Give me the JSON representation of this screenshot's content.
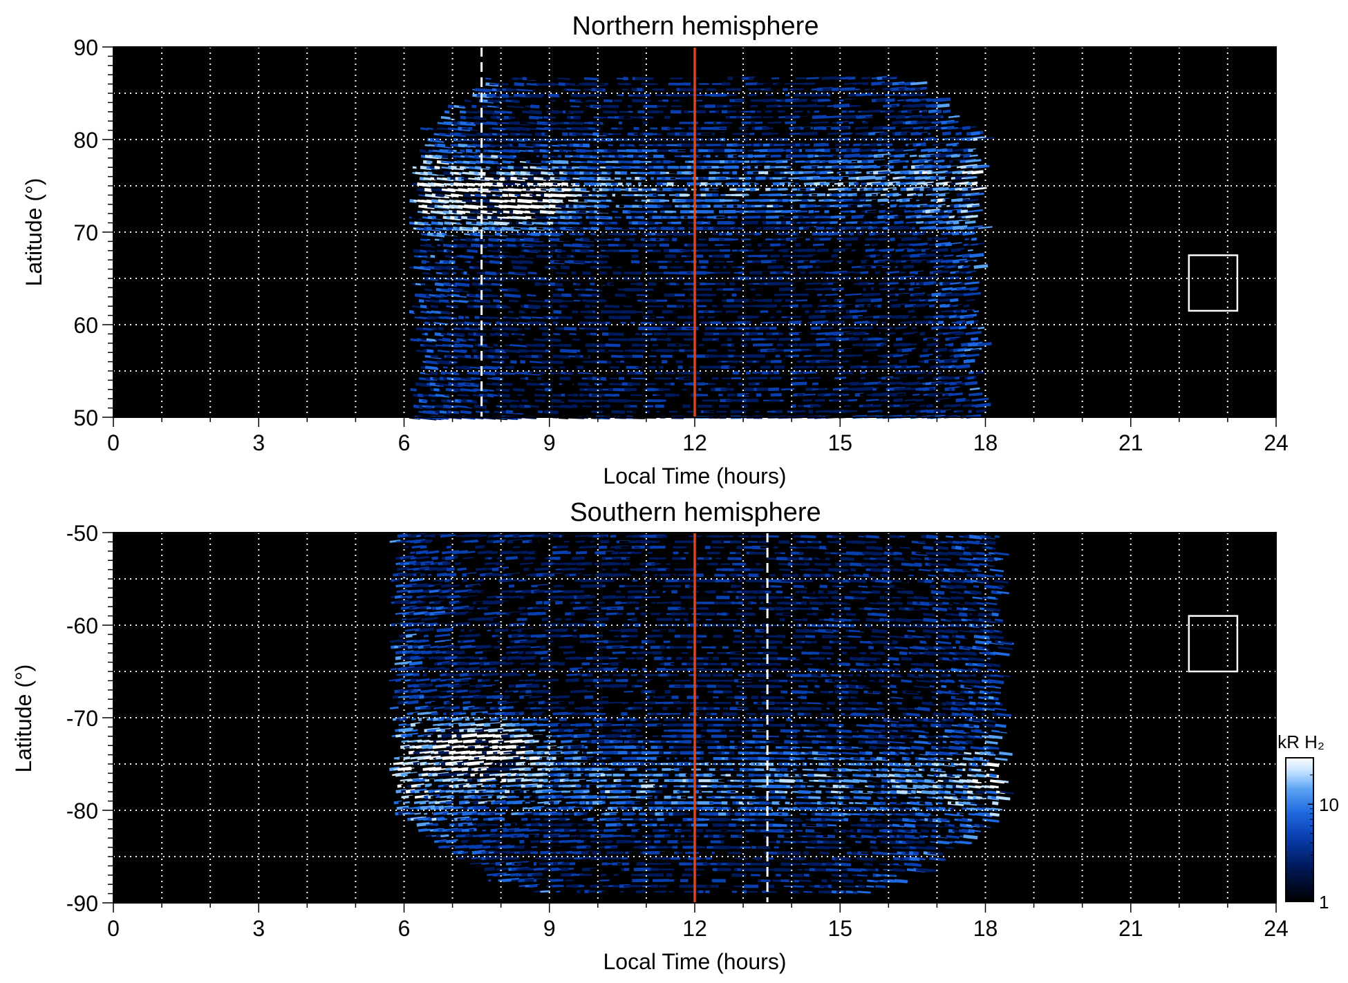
{
  "colors": {
    "background": "#000000",
    "grid": "#ffffff",
    "noon_line": "#d9481a",
    "marker": "#ffffff",
    "colormap": [
      "#000000",
      "#001a5e",
      "#0a3fb0",
      "#1f6ae0",
      "#5aa2f2",
      "#bfe0ff",
      "#ffffff"
    ]
  },
  "colorbar": {
    "label": "kR H₂",
    "ticks": [
      {
        "value": 1,
        "label": "1"
      },
      {
        "value": 10,
        "label": "10"
      }
    ],
    "scale": "log",
    "range": [
      1,
      30
    ]
  },
  "chart_data": [
    {
      "type": "heatmap",
      "title": "Northern hemisphere",
      "xlabel": "Local Time (hours)",
      "ylabel": "Latitude (°)",
      "xlim": [
        0,
        24
      ],
      "ylim": [
        50,
        90
      ],
      "xticks": [
        0,
        3,
        6,
        9,
        12,
        15,
        18,
        21,
        24
      ],
      "yticks": [
        50,
        60,
        70,
        80,
        90
      ],
      "grid": true,
      "noon_line_lt": 12,
      "dashed_marker_lt": 7.6,
      "box": {
        "lt": [
          22.2,
          23.2
        ],
        "lat": [
          61.5,
          67.5
        ]
      },
      "emission": {
        "lt_range": [
          6.4,
          17.9
        ],
        "lat_range": [
          50,
          87
        ],
        "oval_lat": 75,
        "bright_spot": {
          "lt": 8.0,
          "lat": 73.5
        }
      }
    },
    {
      "type": "heatmap",
      "title": "Southern hemisphere",
      "xlabel": "Local Time (hours)",
      "ylabel": "Latitude (°)",
      "xlim": [
        0,
        24
      ],
      "ylim": [
        -90,
        -50
      ],
      "xticks": [
        0,
        3,
        6,
        9,
        12,
        15,
        18,
        21,
        24
      ],
      "yticks": [
        -90,
        -80,
        -70,
        -60,
        -50
      ],
      "grid": true,
      "noon_line_lt": 12,
      "dashed_marker_lt": 13.5,
      "box": {
        "lt": [
          22.2,
          23.2
        ],
        "lat": [
          -65,
          -59
        ]
      },
      "emission": {
        "lt_range": [
          5.9,
          18.3
        ],
        "lat_range": [
          -89,
          -50
        ],
        "oval_lat": -77,
        "bright_spot": {
          "lt": 7.5,
          "lat": -73
        }
      }
    }
  ]
}
